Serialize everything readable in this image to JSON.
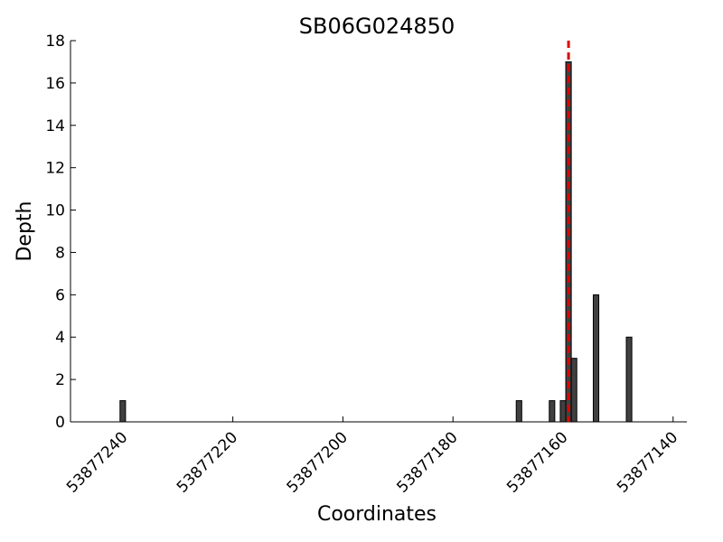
{
  "chart_data": {
    "type": "bar",
    "title": "SB06G024850",
    "xlabel": "Coordinates",
    "ylabel": "Depth",
    "x": [
      53877240,
      53877168,
      53877162,
      53877160,
      53877159,
      53877158,
      53877154,
      53877148
    ],
    "values": [
      1,
      1,
      1,
      1,
      17,
      3,
      6,
      4
    ],
    "color": "#404040",
    "xlim": [
      53877249.5,
      53877137.5
    ],
    "xticks": [
      53877240,
      53877220,
      53877200,
      53877180,
      53877160,
      53877140
    ],
    "ylim": [
      0,
      18
    ],
    "yticks": [
      0,
      2,
      4,
      6,
      8,
      10,
      12,
      14,
      16,
      18
    ],
    "vline": {
      "x": 53877159,
      "color": "#e00000"
    }
  }
}
